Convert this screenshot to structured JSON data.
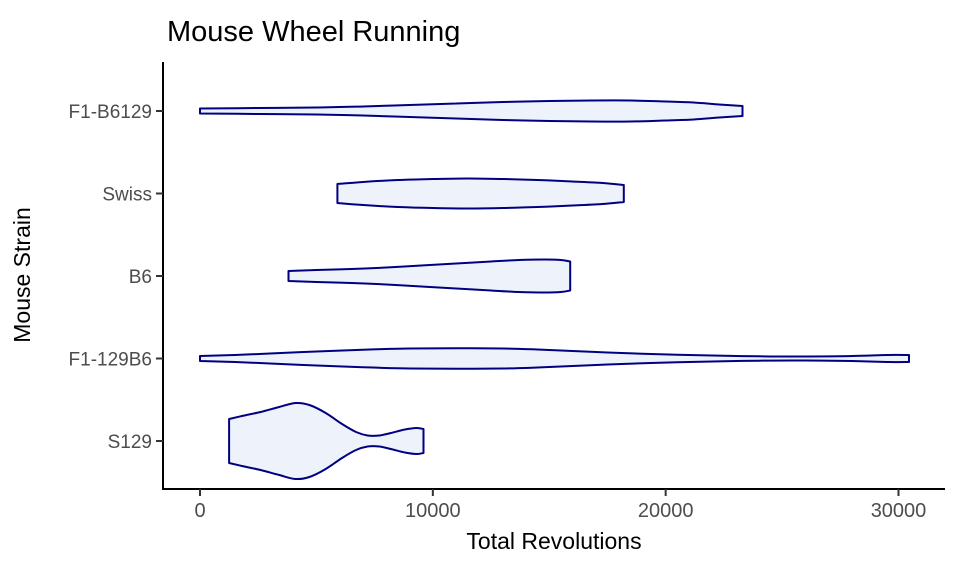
{
  "chart_data": {
    "type": "violin",
    "title": "Mouse Wheel Running",
    "xlabel": "Total Revolutions",
    "ylabel": "Mouse Strain",
    "orientation": "horizontal",
    "grid": false,
    "legend": false,
    "categories": [
      "F1-B6129",
      "Swiss",
      "B6",
      "F1-129B6",
      "S129"
    ],
    "x_ticks": [
      0,
      10000,
      20000,
      30000
    ],
    "x_tick_labels": [
      "0",
      "10000",
      "20000",
      "30000"
    ],
    "xlim": [
      0,
      32000
    ],
    "colors": {
      "violin_fill": "#EDF2FB",
      "violin_stroke": "#000080",
      "axis_line": "#000000",
      "tick_mark": "#333333",
      "tick_label": "#4d4d4d",
      "title": "#000000"
    },
    "violins": [
      {
        "strain": "F1-B6129",
        "x_range": [
          0,
          23300
        ],
        "profile": [
          [
            0,
            2.5
          ],
          [
            2500,
            3
          ],
          [
            5000,
            3.5
          ],
          [
            7000,
            4.5
          ],
          [
            9000,
            6
          ],
          [
            11000,
            7.5
          ],
          [
            13000,
            9
          ],
          [
            15000,
            10
          ],
          [
            16800,
            10.5
          ],
          [
            18500,
            10.5
          ],
          [
            20000,
            9.5
          ],
          [
            21200,
            8.5
          ],
          [
            22300,
            6.5
          ],
          [
            23300,
            5
          ]
        ]
      },
      {
        "strain": "Swiss",
        "x_range": [
          5900,
          18200
        ],
        "profile": [
          [
            5900,
            9.5
          ],
          [
            7000,
            11.5
          ],
          [
            8500,
            13.5
          ],
          [
            10000,
            14.5
          ],
          [
            11500,
            15
          ],
          [
            13000,
            14.5
          ],
          [
            14500,
            13.5
          ],
          [
            16000,
            12
          ],
          [
            17300,
            10.5
          ],
          [
            18200,
            8.5
          ]
        ]
      },
      {
        "strain": "B6",
        "x_range": [
          3800,
          15900
        ],
        "profile": [
          [
            3800,
            5
          ],
          [
            5000,
            6
          ],
          [
            6500,
            7
          ],
          [
            8000,
            8.5
          ],
          [
            9500,
            10.5
          ],
          [
            11000,
            12.5
          ],
          [
            12500,
            14.5
          ],
          [
            13700,
            16
          ],
          [
            14800,
            16.5
          ],
          [
            15500,
            16
          ],
          [
            15900,
            14.5
          ]
        ]
      },
      {
        "strain": "F1-129B6",
        "x_range": [
          0,
          30450
        ],
        "profile": [
          [
            0,
            2.5
          ],
          [
            1500,
            3.5
          ],
          [
            3000,
            5
          ],
          [
            5000,
            7
          ],
          [
            7000,
            8.8
          ],
          [
            9000,
            10
          ],
          [
            11000,
            10.2
          ],
          [
            13000,
            10
          ],
          [
            14500,
            9
          ],
          [
            16000,
            7.5
          ],
          [
            17500,
            6
          ],
          [
            19000,
            4.8
          ],
          [
            20500,
            3.8
          ],
          [
            22000,
            3
          ],
          [
            24000,
            2.2
          ],
          [
            26000,
            2
          ],
          [
            28000,
            2.5
          ],
          [
            29500,
            3.5
          ],
          [
            30450,
            3.5
          ]
        ]
      },
      {
        "strain": "S129",
        "x_range": [
          1250,
          9600
        ],
        "profile": [
          [
            1250,
            22
          ],
          [
            1800,
            25
          ],
          [
            2600,
            29
          ],
          [
            3400,
            34
          ],
          [
            4100,
            38
          ],
          [
            4700,
            36
          ],
          [
            5400,
            28
          ],
          [
            6100,
            17
          ],
          [
            6700,
            9
          ],
          [
            7200,
            5.5
          ],
          [
            7700,
            5.5
          ],
          [
            8200,
            8
          ],
          [
            8800,
            11.5
          ],
          [
            9300,
            13
          ],
          [
            9600,
            12
          ]
        ]
      }
    ]
  }
}
